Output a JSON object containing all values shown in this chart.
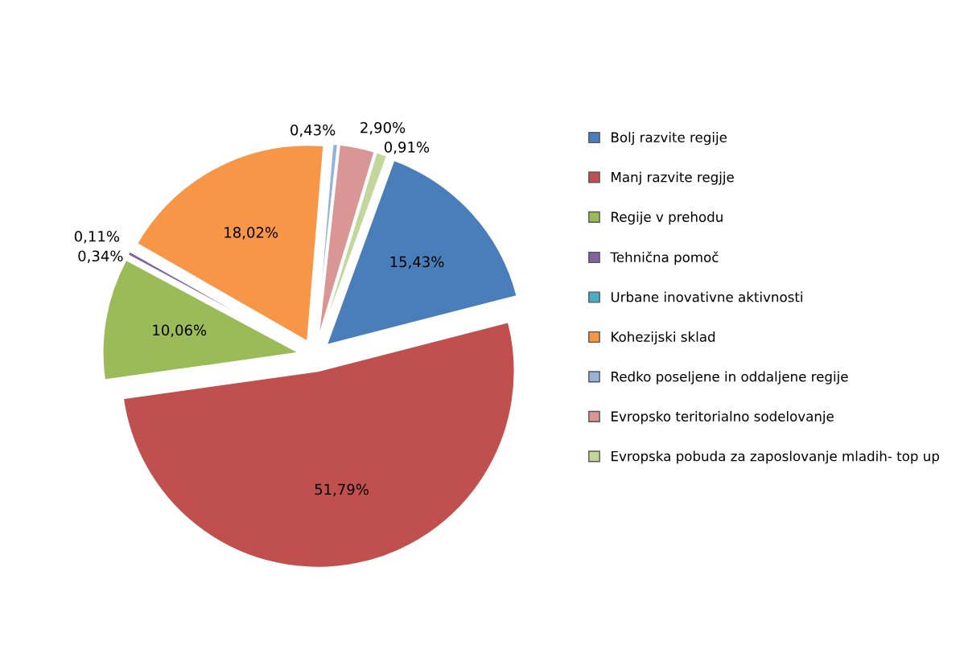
{
  "chart_data": {
    "type": "pie",
    "categories": [
      "Bolj razvite regije",
      "Manj razvite regjje",
      "Regije v prehodu",
      "Tehnična pomoč",
      "Urbane inovativne aktivnosti",
      "Kohezijski sklad",
      "Redko poseljene in oddaljene regije",
      "Evropsko teritorialno sodelovanje",
      "Evropska pobuda za zaposlovanje mladih- top up"
    ],
    "values": [
      15.43,
      51.79,
      10.06,
      0.34,
      0.11,
      18.02,
      0.43,
      2.9,
      0.91
    ],
    "colors": [
      "#4a7ebb",
      "#c0504d",
      "#9bbb59",
      "#8064a2",
      "#4bacc6",
      "#f79646",
      "#95b3d7",
      "#d99694",
      "#c3d69b"
    ],
    "value_labels": [
      "15,43%",
      "51,79%",
      "10,06%",
      "0,34%",
      "0,11%",
      "18,02%",
      "0,43%",
      "2,90%",
      "0,91%"
    ],
    "legend": "right"
  }
}
